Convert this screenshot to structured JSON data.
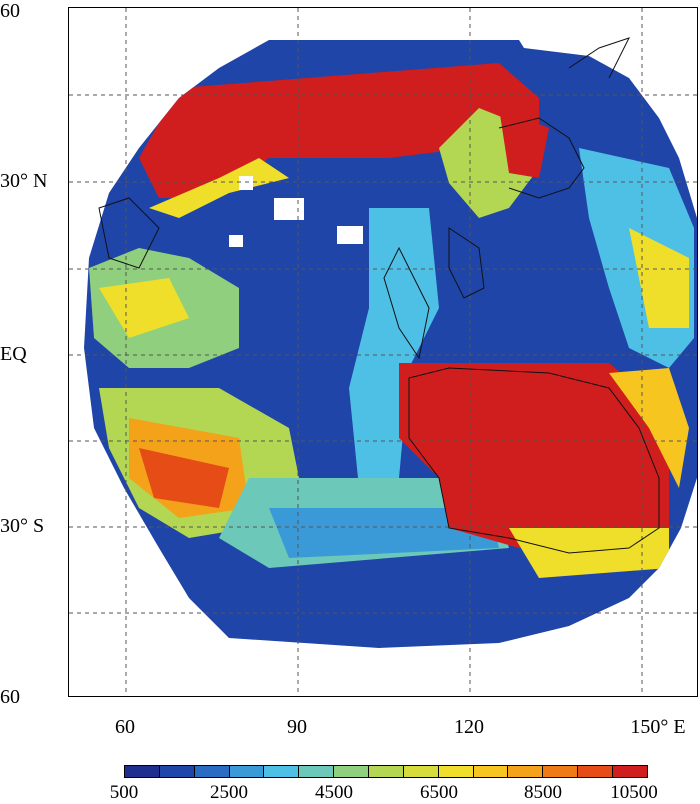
{
  "axes": {
    "y_labels": [
      "60",
      "30° N",
      "EQ",
      "30° S",
      "60"
    ],
    "x_labels": [
      "60",
      "90",
      "120",
      "150° E"
    ]
  },
  "colorbar": {
    "labels": [
      "500",
      "2500",
      "4500",
      "6500",
      "8500",
      "10500"
    ],
    "colors": [
      "#1f2f8f",
      "#1f45a8",
      "#2a6cc4",
      "#3a9ad8",
      "#4ec0e6",
      "#6cc8b9",
      "#8fcf7e",
      "#b3d653",
      "#d6dc3c",
      "#f0df2a",
      "#f6c51f",
      "#f3a21a",
      "#ee7a17",
      "#e54c16",
      "#d01e1e"
    ]
  },
  "map": {
    "grid_lines": "dashed",
    "regions": {
      "background": "#1f45a8",
      "north_band": "#d01e1e",
      "australia": "#d01e1e",
      "south_indian_hotspot": "#e54c16"
    }
  }
}
